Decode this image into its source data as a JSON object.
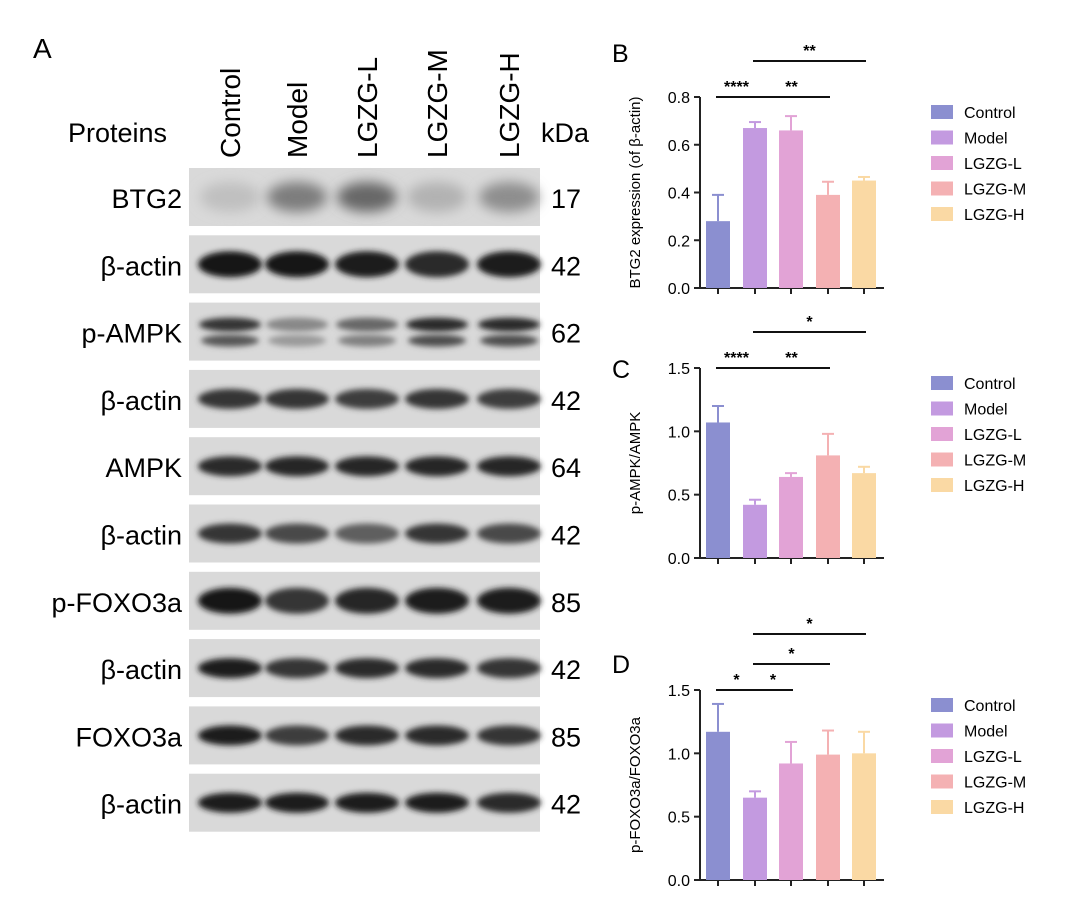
{
  "panel_a": {
    "letter": "A",
    "proteins_header": "Proteins",
    "kda_header": "kDa",
    "lanes": [
      "Control",
      "Model",
      "LGZG-L",
      "LGZG-M",
      "LGZG-H"
    ],
    "rows": [
      {
        "protein": "BTG2",
        "kda": "17",
        "intensity": [
          0.18,
          0.5,
          0.6,
          0.25,
          0.42
        ],
        "style": "diffuse"
      },
      {
        "protein": "β-actin",
        "kda": "42",
        "intensity": [
          1,
          1,
          0.95,
          0.9,
          0.95
        ],
        "style": "thick"
      },
      {
        "protein": "p-AMPK",
        "kda": "62",
        "intensity": [
          0.85,
          0.45,
          0.6,
          0.9,
          0.9
        ],
        "style": "double"
      },
      {
        "protein": "β-actin",
        "kda": "42",
        "intensity": [
          0.85,
          0.85,
          0.8,
          0.85,
          0.8
        ],
        "style": "normal"
      },
      {
        "protein": "AMPK",
        "kda": "64",
        "intensity": [
          0.9,
          0.92,
          0.92,
          0.92,
          0.92
        ],
        "style": "normal"
      },
      {
        "protein": "β-actin",
        "kda": "42",
        "intensity": [
          0.85,
          0.75,
          0.65,
          0.85,
          0.75
        ],
        "style": "normal"
      },
      {
        "protein": "p-FOXO3a",
        "kda": "85",
        "intensity": [
          1,
          0.85,
          0.92,
          0.95,
          0.95
        ],
        "style": "thick"
      },
      {
        "protein": "β-actin",
        "kda": "42",
        "intensity": [
          0.95,
          0.85,
          0.9,
          0.9,
          0.85
        ],
        "style": "normal"
      },
      {
        "protein": "FOXO3a",
        "kda": "85",
        "intensity": [
          0.95,
          0.8,
          0.9,
          0.9,
          0.85
        ],
        "style": "normal"
      },
      {
        "protein": "β-actin",
        "kda": "42",
        "intensity": [
          0.95,
          0.95,
          0.95,
          0.95,
          0.9
        ],
        "style": "normal"
      }
    ]
  },
  "chart_data": [
    {
      "panel": "B",
      "type": "bar",
      "categories": [
        "Control",
        "Model",
        "LGZG-L",
        "LGZG-M",
        "LGZG-H"
      ],
      "values": [
        0.28,
        0.67,
        0.66,
        0.39,
        0.45
      ],
      "errors": [
        0.11,
        0.025,
        0.06,
        0.055,
        0.015
      ],
      "ylabel": "BTG2 expression (of β-actin)",
      "ylim": [
        0,
        0.8
      ],
      "yticks": [
        "0.0",
        "0.2",
        "0.4",
        "0.6",
        "0.8"
      ],
      "legend": [
        "Control",
        "Model",
        "LGZG-L",
        "LGZG-M",
        "LGZG-H"
      ],
      "legend_position": "right",
      "significance": [
        {
          "from": 0,
          "to": 1,
          "label": "****",
          "level": 0
        },
        {
          "from": 1,
          "to": 3,
          "label": "**",
          "level": 0
        },
        {
          "from": 1,
          "to": 4,
          "label": "**",
          "level": 1
        }
      ]
    },
    {
      "panel": "C",
      "type": "bar",
      "categories": [
        "Control",
        "Model",
        "LGZG-L",
        "LGZG-M",
        "LGZG-H"
      ],
      "values": [
        1.07,
        0.42,
        0.64,
        0.81,
        0.67
      ],
      "errors": [
        0.13,
        0.04,
        0.03,
        0.17,
        0.05
      ],
      "ylabel": "p-AMPK/AMPK",
      "ylim": [
        0,
        1.5
      ],
      "yticks": [
        "0.0",
        "0.5",
        "1.0",
        "1.5"
      ],
      "legend": [
        "Control",
        "Model",
        "LGZG-L",
        "LGZG-M",
        "LGZG-H"
      ],
      "legend_position": "right",
      "significance": [
        {
          "from": 0,
          "to": 1,
          "label": "****",
          "level": 0
        },
        {
          "from": 1,
          "to": 3,
          "label": "**",
          "level": 0
        },
        {
          "from": 1,
          "to": 4,
          "label": "*",
          "level": 1
        }
      ]
    },
    {
      "panel": "D",
      "type": "bar",
      "categories": [
        "Control",
        "Model",
        "LGZG-L",
        "LGZG-M",
        "LGZG-H"
      ],
      "values": [
        1.17,
        0.65,
        0.92,
        0.99,
        1.0
      ],
      "errors": [
        0.22,
        0.05,
        0.17,
        0.19,
        0.17
      ],
      "ylabel": "p-FOXO3a/FOXO3a",
      "ylim": [
        0,
        1.5
      ],
      "yticks": [
        "0.0",
        "0.5",
        "1.0",
        "1.5"
      ],
      "legend": [
        "Control",
        "Model",
        "LGZG-L",
        "LGZG-M",
        "LGZG-H"
      ],
      "legend_position": "right",
      "significance": [
        {
          "from": 0,
          "to": 1,
          "label": "*",
          "level": 0
        },
        {
          "from": 1,
          "to": 2,
          "label": "*",
          "level": 0
        },
        {
          "from": 1,
          "to": 3,
          "label": "*",
          "level": 1
        },
        {
          "from": 1,
          "to": 4,
          "label": "*",
          "level": 2
        }
      ]
    }
  ],
  "colors": {
    "Control": "#8B8FD0",
    "Model": "#C39AE0",
    "LGZG-L": "#E2A3D6",
    "LGZG-M": "#F4B1B3",
    "LGZG-H": "#FAD9A4"
  }
}
